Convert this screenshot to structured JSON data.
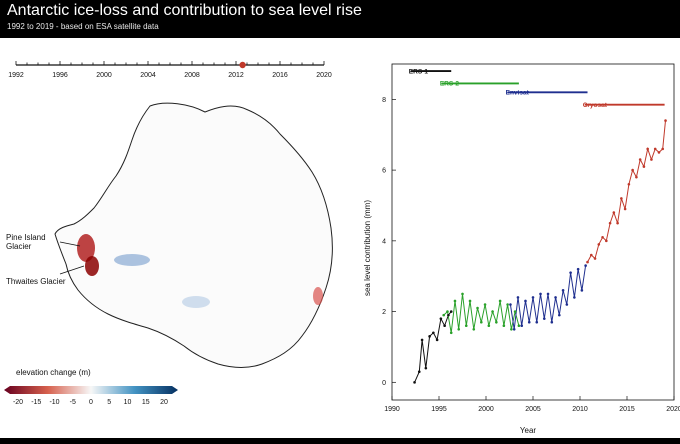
{
  "header": {
    "title": "Antarctic ice-loss and contribution to sea level rise",
    "subtitle": "1992 to 2019 - based on ESA satellite data"
  },
  "timeline": {
    "tick_labels": [
      "1992",
      "1996",
      "2000",
      "2004",
      "2008",
      "2012",
      "2016",
      "2020"
    ],
    "start_year": 1992,
    "end_year": 2020,
    "current_year": 2012.6,
    "marker_color": "#c0392b"
  },
  "map": {
    "annotations": [
      "Pine Island\nGlacier",
      "Thwaites Glacier"
    ],
    "colorbar": {
      "title": "elevation change (m)",
      "tick_labels": [
        "-20",
        "-15",
        "-10",
        "-5",
        "0",
        "5",
        "10",
        "15",
        "20"
      ],
      "neg_color": "#b2182b",
      "pos_color": "#2166ac"
    }
  },
  "chart_data": {
    "type": "line",
    "xlabel": "Year",
    "ylabel": "sea level contribution (mm)",
    "xlim": [
      1990,
      2020
    ],
    "ylim": [
      -0.5,
      9
    ],
    "xticks": [
      1990,
      1995,
      2000,
      2005,
      2010,
      2015,
      2020
    ],
    "yticks": [
      0,
      2,
      4,
      6,
      8
    ],
    "missions": [
      {
        "name": "ERS-1",
        "start": 1992.0,
        "end": 1996.3,
        "level": 8.8,
        "color": "#111111"
      },
      {
        "name": "ERS-2",
        "start": 1995.3,
        "end": 2003.5,
        "level": 8.45,
        "color": "#2aa12a"
      },
      {
        "name": "Envisat",
        "start": 2002.3,
        "end": 2010.8,
        "level": 8.2,
        "color": "#1f2f8f"
      },
      {
        "name": "Cryosat",
        "start": 2010.5,
        "end": 2019.0,
        "level": 7.85,
        "color": "#c0392b"
      }
    ],
    "series": [
      {
        "name": "ERS-1",
        "color": "#111111",
        "x": [
          1992.4,
          1992.9,
          1993.2,
          1993.6,
          1994.0,
          1994.4,
          1994.8,
          1995.2,
          1995.6,
          1996.0,
          1996.3
        ],
        "y": [
          0.0,
          0.3,
          1.2,
          0.4,
          1.3,
          1.4,
          1.2,
          1.8,
          1.6,
          1.9,
          2.0
        ]
      },
      {
        "name": "ERS-2",
        "color": "#2aa12a",
        "x": [
          1995.5,
          1995.9,
          1996.3,
          1996.7,
          1997.1,
          1997.5,
          1997.9,
          1998.3,
          1998.7,
          1999.1,
          1999.5,
          1999.9,
          2000.3,
          2000.7,
          2001.1,
          2001.5,
          2001.9,
          2002.3,
          2002.7,
          2003.1,
          2003.5
        ],
        "y": [
          1.9,
          2.0,
          1.4,
          2.3,
          1.5,
          2.5,
          1.6,
          2.3,
          1.5,
          2.1,
          1.7,
          2.2,
          1.6,
          2.0,
          1.7,
          2.3,
          1.6,
          2.2,
          1.5,
          2.0,
          1.6
        ]
      },
      {
        "name": "Envisat",
        "color": "#1f2f8f",
        "x": [
          2002.6,
          2003.0,
          2003.4,
          2003.8,
          2004.2,
          2004.6,
          2005.0,
          2005.4,
          2005.8,
          2006.2,
          2006.6,
          2007.0,
          2007.4,
          2007.8,
          2008.2,
          2008.6,
          2009.0,
          2009.4,
          2009.8,
          2010.2,
          2010.6
        ],
        "y": [
          2.2,
          1.5,
          2.4,
          1.6,
          2.3,
          1.7,
          2.4,
          1.7,
          2.5,
          1.8,
          2.5,
          1.7,
          2.4,
          1.9,
          2.6,
          2.2,
          3.1,
          2.4,
          3.2,
          2.6,
          3.3
        ]
      },
      {
        "name": "Cryosat",
        "color": "#c0392b",
        "x": [
          2010.8,
          2011.2,
          2011.6,
          2012.0,
          2012.4,
          2012.8,
          2013.2,
          2013.6,
          2014.0,
          2014.4,
          2014.8,
          2015.2,
          2015.6,
          2016.0,
          2016.4,
          2016.8,
          2017.2,
          2017.6,
          2018.0,
          2018.4,
          2018.8,
          2019.1
        ],
        "y": [
          3.4,
          3.6,
          3.5,
          3.9,
          4.1,
          4.0,
          4.5,
          4.8,
          4.5,
          5.2,
          4.9,
          5.6,
          6.0,
          5.8,
          6.3,
          6.1,
          6.6,
          6.3,
          6.6,
          6.5,
          6.6,
          7.4
        ]
      }
    ]
  }
}
